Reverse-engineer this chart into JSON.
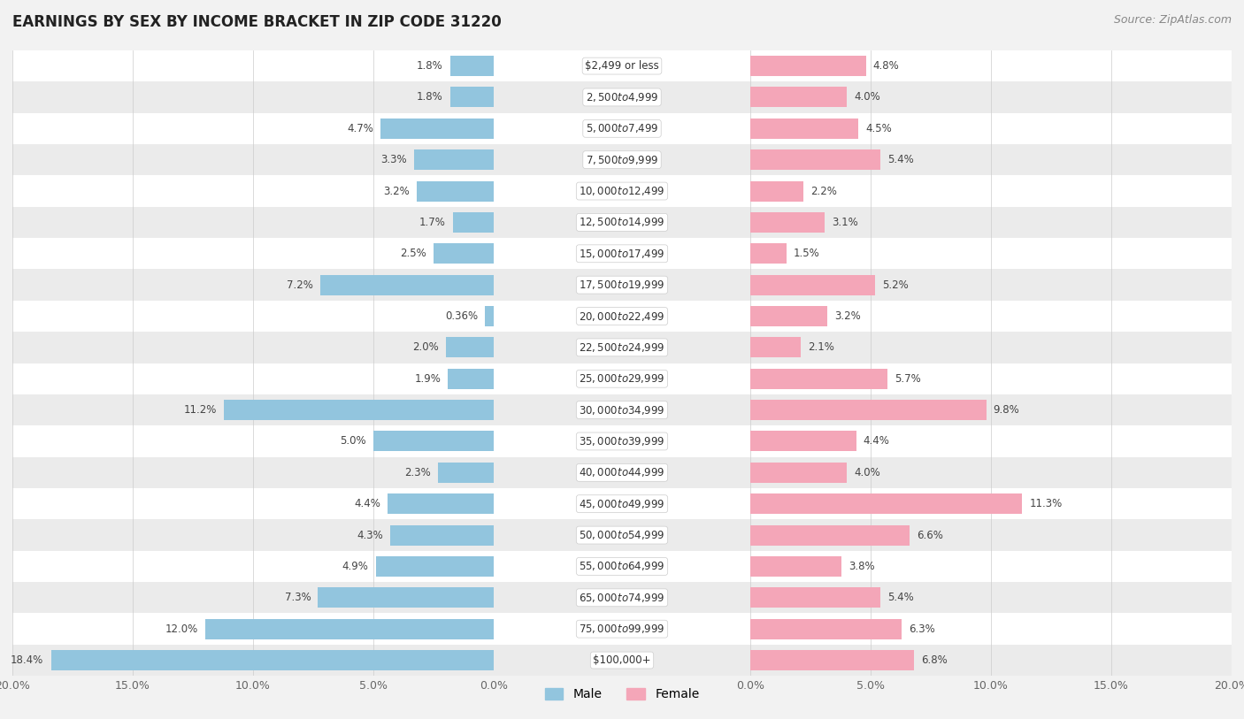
{
  "title": "EARNINGS BY SEX BY INCOME BRACKET IN ZIP CODE 31220",
  "source": "Source: ZipAtlas.com",
  "categories": [
    "$2,499 or less",
    "$2,500 to $4,999",
    "$5,000 to $7,499",
    "$7,500 to $9,999",
    "$10,000 to $12,499",
    "$12,500 to $14,999",
    "$15,000 to $17,499",
    "$17,500 to $19,999",
    "$20,000 to $22,499",
    "$22,500 to $24,999",
    "$25,000 to $29,999",
    "$30,000 to $34,999",
    "$35,000 to $39,999",
    "$40,000 to $44,999",
    "$45,000 to $49,999",
    "$50,000 to $54,999",
    "$55,000 to $64,999",
    "$65,000 to $74,999",
    "$75,000 to $99,999",
    "$100,000+"
  ],
  "male_values": [
    1.8,
    1.8,
    4.7,
    3.3,
    3.2,
    1.7,
    2.5,
    7.2,
    0.36,
    2.0,
    1.9,
    11.2,
    5.0,
    2.3,
    4.4,
    4.3,
    4.9,
    7.3,
    12.0,
    18.4
  ],
  "female_values": [
    4.8,
    4.0,
    4.5,
    5.4,
    2.2,
    3.1,
    1.5,
    5.2,
    3.2,
    2.1,
    5.7,
    9.8,
    4.4,
    4.0,
    11.3,
    6.6,
    3.8,
    5.4,
    6.3,
    6.8
  ],
  "male_color": "#92c5de",
  "female_color": "#f4a6b8",
  "male_label": "Male",
  "female_label": "Female",
  "xlim": 20.0,
  "background_color": "#f2f2f2",
  "row_color_odd": "#ffffff",
  "row_color_even": "#ebebeb",
  "title_fontsize": 12,
  "source_fontsize": 9,
  "label_fontsize": 8.5,
  "value_fontsize": 8.5,
  "tick_fontsize": 9,
  "legend_fontsize": 10
}
